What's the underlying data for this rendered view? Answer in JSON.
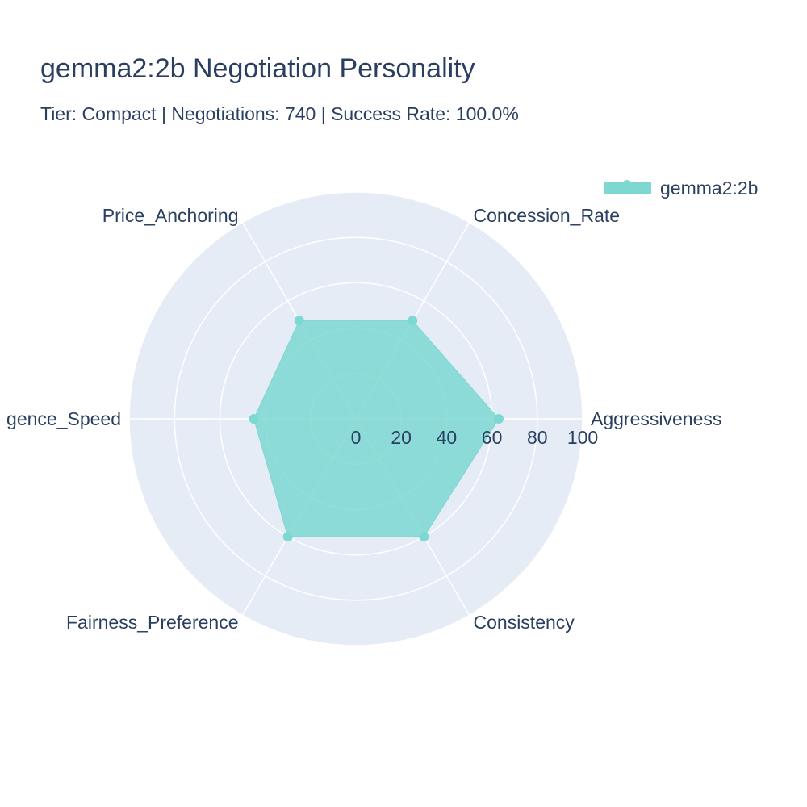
{
  "chart": {
    "title": "gemma2:2b Negotiation Personality",
    "subtitle": "Tier: Compact | Negotiations: 740 | Success Rate: 100.0%"
  },
  "colors": {
    "background": "#ffffff",
    "polar_bg": "#e5ecf6",
    "grid": "#ffffff",
    "text": "#2a3f5f",
    "series_fill": "#7dd8d2",
    "series_marker": "#7dd8d2"
  },
  "chart_data": {
    "type": "radar",
    "categories": [
      "Aggressiveness",
      "Concession_Rate",
      "Price_Anchoring",
      "Convergence_Speed",
      "Fairness_Preference",
      "Consistency"
    ],
    "category_display": [
      "Aggressiveness",
      "Concession_Rate",
      "Price_Anchoring",
      "gence_Speed",
      "Fairness_Preference",
      "Consistency"
    ],
    "series": [
      {
        "name": "gemma2:2b",
        "values": [
          63,
          50,
          50,
          45,
          60,
          60
        ]
      }
    ],
    "radial_range": [
      0,
      100
    ],
    "radial_ticks": [
      0,
      20,
      40,
      60,
      80,
      100
    ],
    "angular_start": "east",
    "direction": "counterclockwise",
    "grid": true,
    "legend_position": "top-right"
  }
}
